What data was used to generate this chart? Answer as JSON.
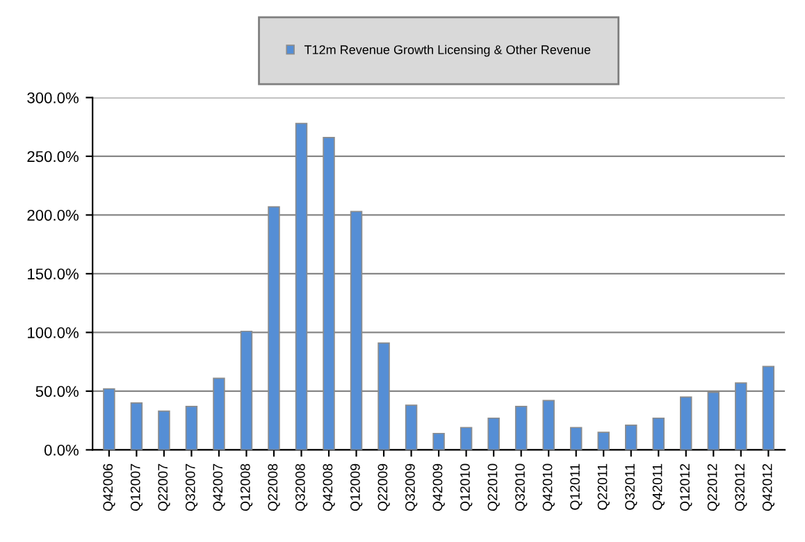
{
  "chart_data": {
    "type": "bar",
    "categories": [
      "Q42006",
      "Q12007",
      "Q22007",
      "Q32007",
      "Q42007",
      "Q12008",
      "Q22008",
      "Q32008",
      "Q42008",
      "Q12009",
      "Q22009",
      "Q32009",
      "Q42009",
      "Q12010",
      "Q22010",
      "Q32010",
      "Q42010",
      "Q12011",
      "Q22011",
      "Q32011",
      "Q42011",
      "Q12012",
      "Q22012",
      "Q32012",
      "Q42012"
    ],
    "series": [
      {
        "name": "T12m Revenue Growth Licensing & Other Revenue",
        "color": "#558ed5",
        "values": [
          52,
          40,
          33,
          37,
          61,
          101,
          207,
          278,
          266,
          203,
          91,
          38,
          14,
          19,
          27,
          37,
          42,
          19,
          15,
          21,
          27,
          45,
          49,
          57,
          71
        ]
      }
    ],
    "ylim": [
      0,
      300
    ],
    "yticks": [
      {
        "value": 0,
        "label": "0.0%"
      },
      {
        "value": 50,
        "label": "50.0%"
      },
      {
        "value": 100,
        "label": "100.0%"
      },
      {
        "value": 150,
        "label": "150.0%"
      },
      {
        "value": 200,
        "label": "200.0%"
      },
      {
        "value": 250,
        "label": "250.0%"
      },
      {
        "value": 300,
        "label": "300.0%"
      }
    ],
    "grid": "y",
    "legend": "top"
  }
}
